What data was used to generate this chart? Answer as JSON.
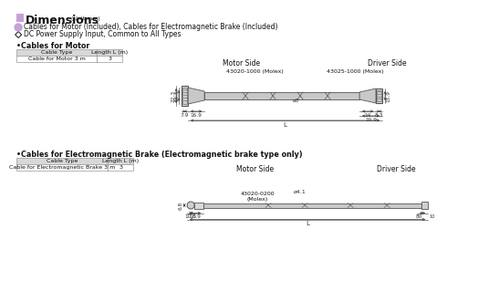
{
  "title": "Dimensions",
  "title_unit": "(Unit mm)",
  "title_box_color": "#c8a0d8",
  "bg_color": "#ffffff",
  "bullet1_color": "#c8a0d8",
  "bullet1_text": "Cables for Motor (Included), Cables for Electromagnetic Brake (Included)",
  "bullet2_text": "DC Power Supply Input, Common to All Types",
  "section1_title": "•Cables for Motor",
  "section1_table_headers": [
    "Cable Type",
    "Length L (m)"
  ],
  "section1_table_rows": [
    [
      "Cable for Motor 3 m",
      "3"
    ]
  ],
  "section1_motor_side": "Motor Side",
  "section1_driver_side": "Driver Side",
  "section1_connector1": "43020-1000 (Molex)",
  "section1_connector2": "43025-1000 (Molex)",
  "section2_title": "•Cables for Electromagnetic Brake (Electromagnetic brake type only)",
  "section2_table_headers": [
    "Cable Type",
    "Length L (m)"
  ],
  "section2_table_rows": [
    [
      "Cable for Electromagnetic Brake 3 m",
      "3"
    ]
  ],
  "section2_motor_side": "Motor Side",
  "section2_driver_side": "Driver Side",
  "section2_connector": "43020-0200\n(Molex)",
  "line_color": "#555555",
  "dim_color": "#333333",
  "table_header_bg": "#d8d8d8",
  "table_border_color": "#999999",
  "text_color": "#111111",
  "cable_color": "#c8c8c8",
  "connector_color": "#b0b0b0"
}
